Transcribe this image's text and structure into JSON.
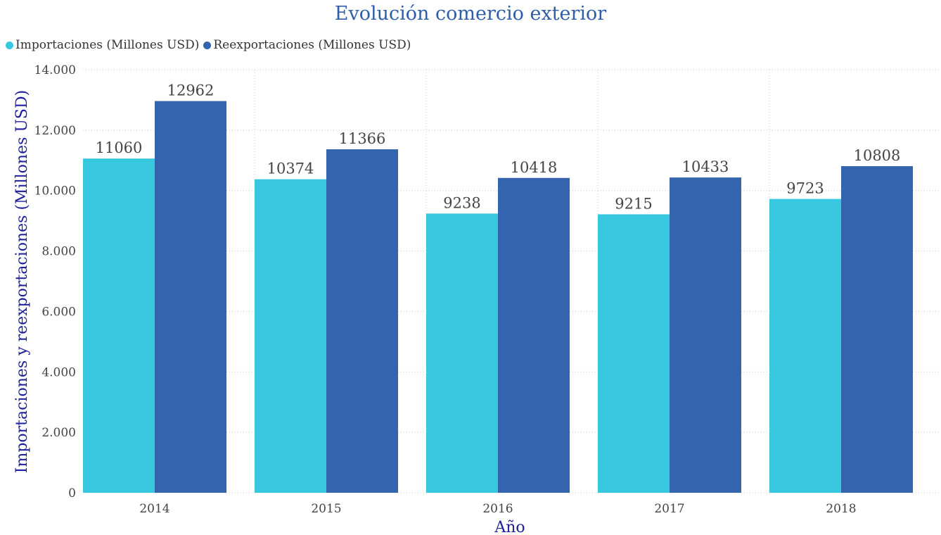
{
  "chart_data": {
    "type": "bar",
    "title": "Evolución comercio exterior",
    "xlabel": "Año",
    "ylabel": "Importaciones y reexportaciones (Millones USD)",
    "categories": [
      "2014",
      "2015",
      "2016",
      "2017",
      "2018"
    ],
    "series": [
      {
        "name": "Importaciones (Millones USD)",
        "color": "#37c8e0",
        "values": [
          11060,
          10374,
          9238,
          9215,
          9723
        ]
      },
      {
        "name": "Reexportaciones (Millones USD)",
        "color": "#3464ad",
        "values": [
          12962,
          11366,
          10418,
          10433,
          10808
        ]
      }
    ],
    "ylim": [
      0,
      14000
    ],
    "yticks": [
      0,
      2000,
      4000,
      6000,
      8000,
      10000,
      12000,
      14000
    ],
    "ytick_labels": [
      "0",
      "2.000",
      "4.000",
      "6.000",
      "8.000",
      "10.000",
      "12.000",
      "14.000"
    ],
    "grid": true,
    "legend_position": "top-left",
    "data_labels": true
  }
}
